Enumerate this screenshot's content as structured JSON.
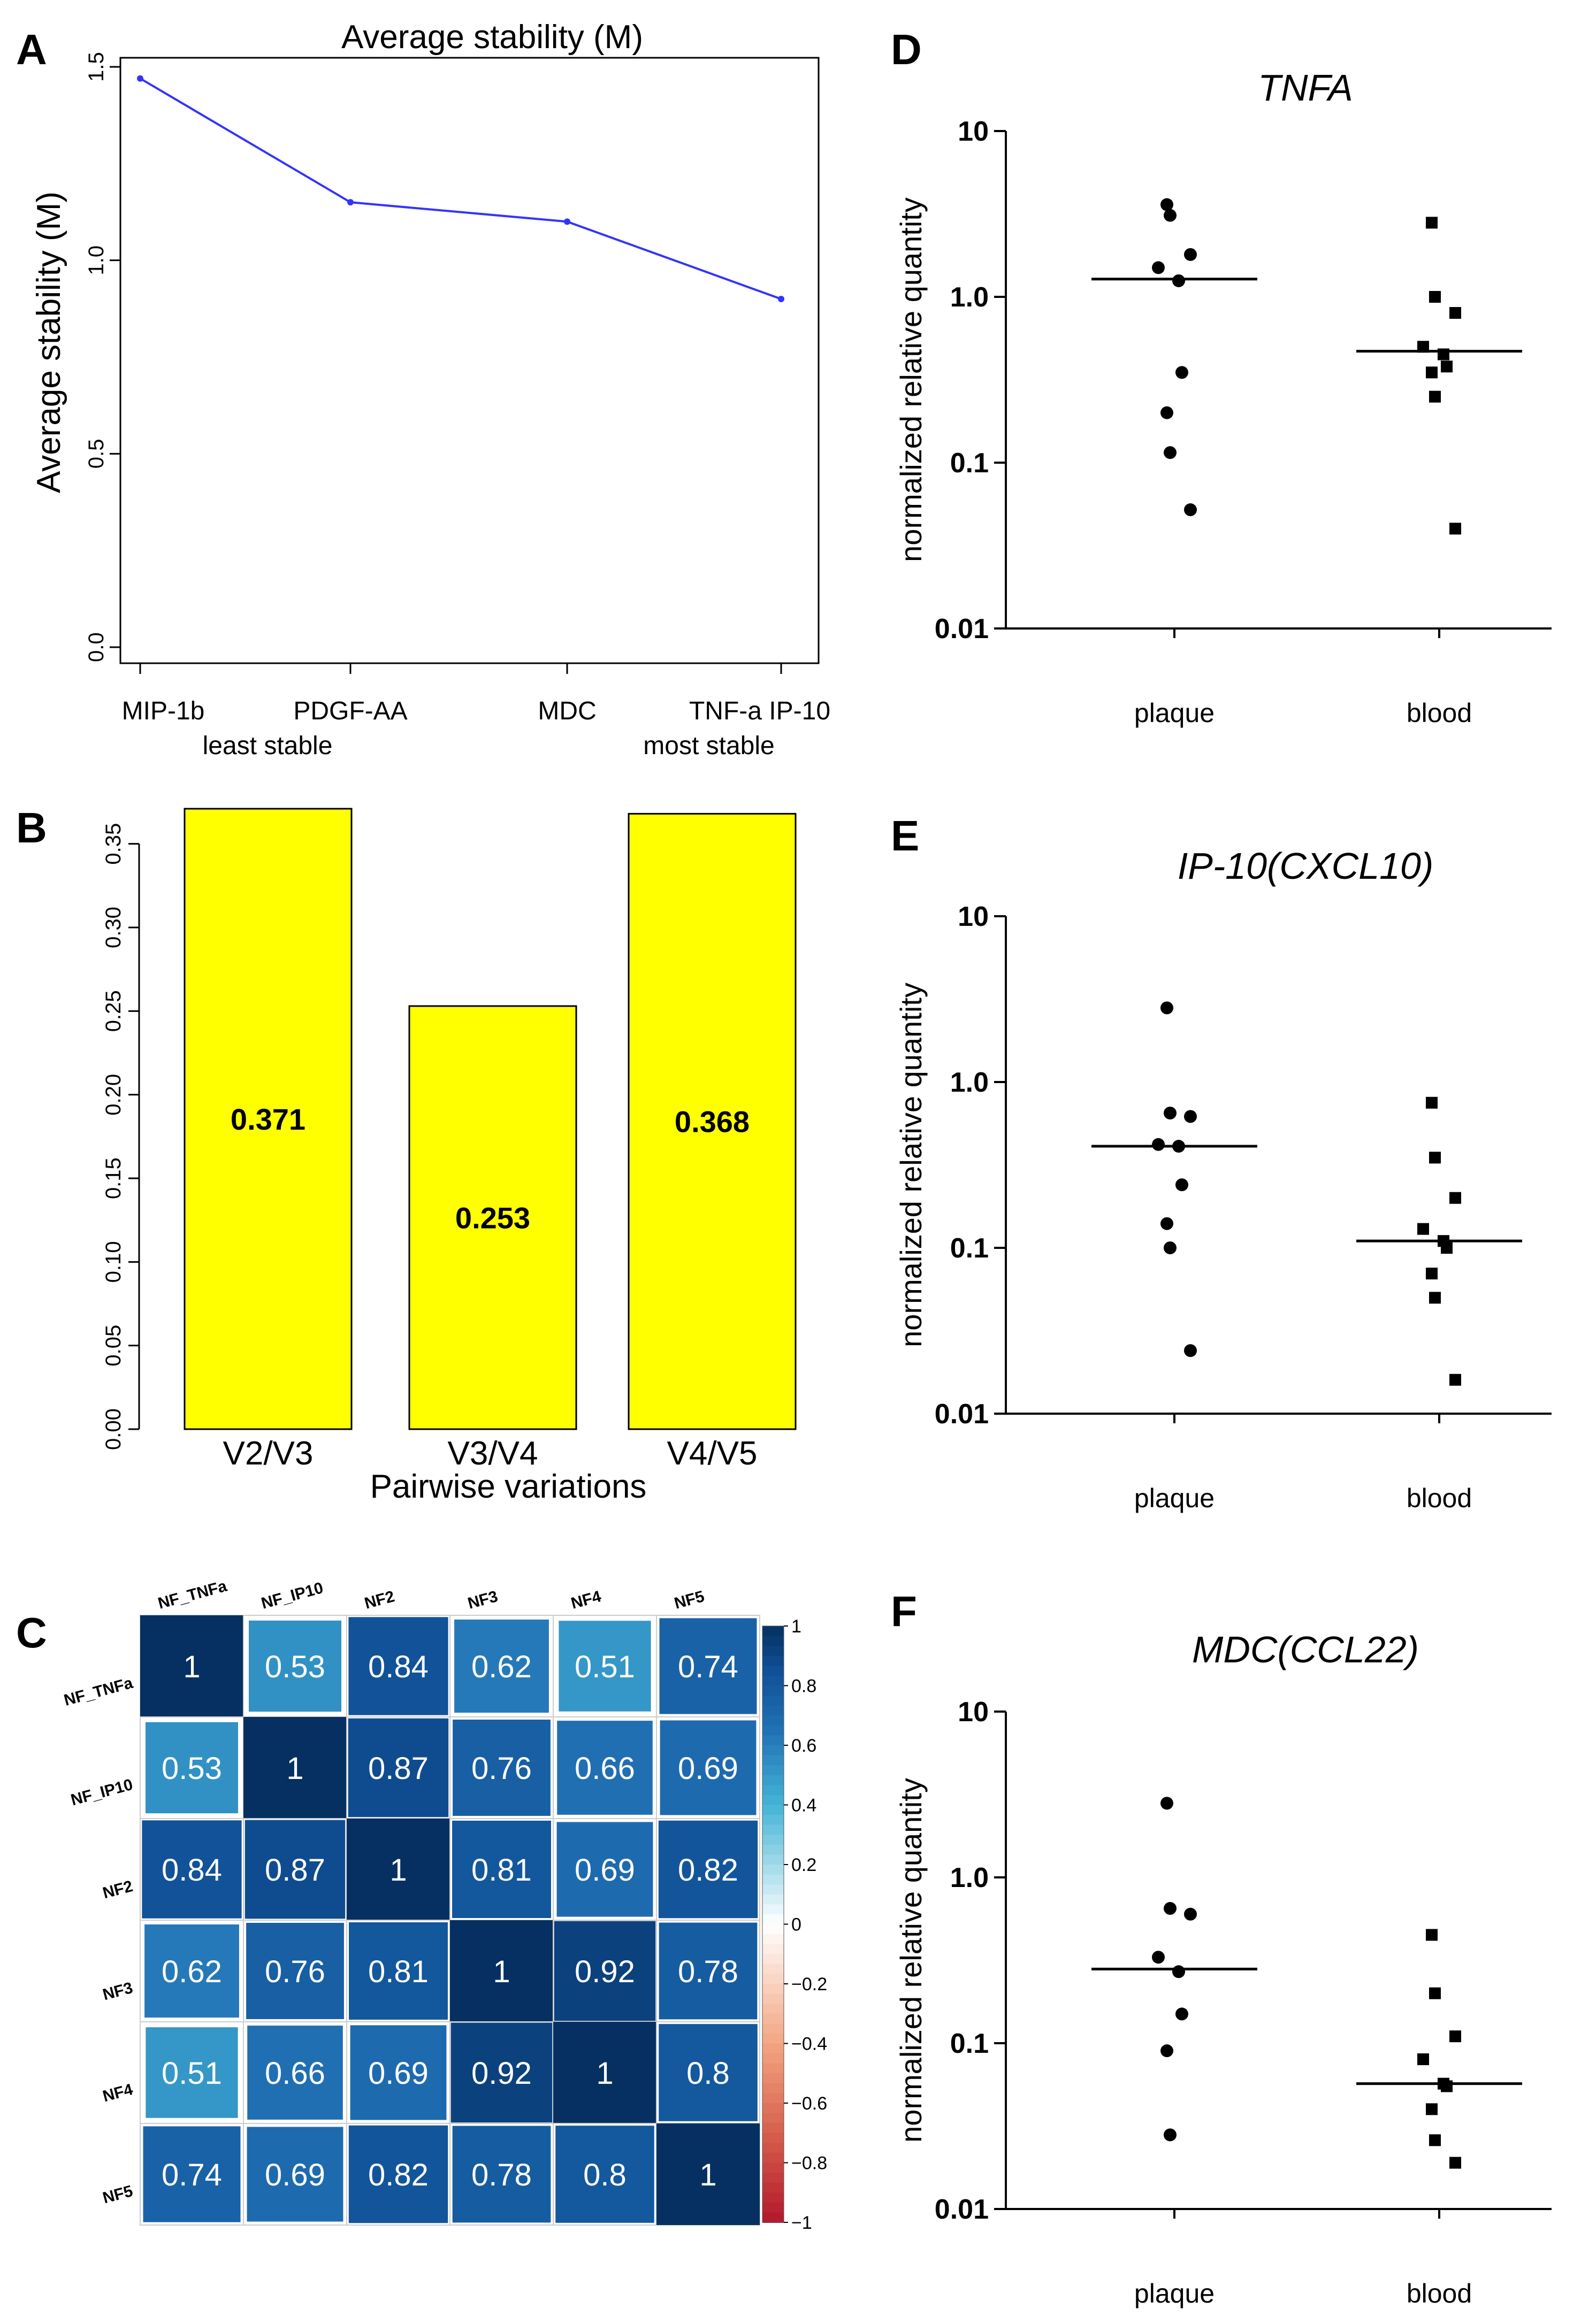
{
  "panels": {
    "A": "A",
    "B": "B",
    "C": "C",
    "D": "D",
    "E": "E",
    "F": "F"
  },
  "chart_data": [
    {
      "id": "A",
      "type": "line",
      "title": "Average stability (M)",
      "xlabel": "",
      "ylabel": "Average stability (M)",
      "categories": [
        "MIP-1b",
        "PDGF-AA",
        "MDC",
        "TNF-a IP-10"
      ],
      "values": [
        1.47,
        1.15,
        1.1,
        0.9
      ],
      "sub_labels": [
        "least stable",
        "most stable"
      ],
      "ylim": [
        0,
        1.5
      ],
      "yticks": [
        "0.0",
        "0.5",
        "1.0",
        "1.5"
      ],
      "color": "#3333ff"
    },
    {
      "id": "B",
      "type": "bar",
      "title": "",
      "xlabel": "Pairwise variations",
      "ylabel": "",
      "categories": [
        "V2/V3",
        "V3/V4",
        "V4/V5"
      ],
      "values": [
        0.371,
        0.253,
        0.368
      ],
      "value_labels": [
        "0.371",
        "0.253",
        "0.368"
      ],
      "ylim": [
        0,
        0.371
      ],
      "yticks": [
        "0.00",
        "0.05",
        "0.10",
        "0.15",
        "0.20",
        "0.25",
        "0.30",
        "0.35"
      ],
      "color": "#ffff00"
    },
    {
      "id": "C",
      "type": "heatmap",
      "labels": [
        "NF_TNFa",
        "NF_IP10",
        "NF2",
        "NF3",
        "NF4",
        "NF5"
      ],
      "matrix": [
        [
          1,
          0.53,
          0.84,
          0.62,
          0.51,
          0.74
        ],
        [
          0.53,
          1,
          0.87,
          0.76,
          0.66,
          0.69
        ],
        [
          0.84,
          0.87,
          1,
          0.81,
          0.69,
          0.82
        ],
        [
          0.62,
          0.76,
          0.81,
          1,
          0.92,
          0.78
        ],
        [
          0.51,
          0.66,
          0.69,
          0.92,
          1,
          0.8
        ],
        [
          0.74,
          0.69,
          0.82,
          0.78,
          0.8,
          1
        ]
      ],
      "cell_labels": [
        [
          "1",
          "0.53",
          "0.84",
          "0.62",
          "0.51",
          "0.74"
        ],
        [
          "0.53",
          "1",
          "0.87",
          "0.76",
          "0.66",
          "0.69"
        ],
        [
          "0.84",
          "0.87",
          "1",
          "0.81",
          "0.69",
          "0.82"
        ],
        [
          "0.62",
          "0.76",
          "0.81",
          "1",
          "0.92",
          "0.78"
        ],
        [
          "0.51",
          "0.66",
          "0.69",
          "0.92",
          "1",
          "0.8"
        ],
        [
          "0.74",
          "0.69",
          "0.82",
          "0.78",
          "0.8",
          "1"
        ]
      ],
      "colorbar_ticks": [
        "1",
        "0.8",
        "0.6",
        "0.4",
        "0.2",
        "0",
        "−0.2",
        "−0.4",
        "−0.6",
        "−0.8",
        "−1"
      ],
      "colors": {
        "positive": "#053061",
        "neutral": "#ffffff",
        "negative": "#b2182b"
      }
    },
    {
      "id": "D",
      "type": "scatter",
      "title": "TNFA",
      "ylabel": "normalized relative quantity",
      "categories": [
        "plaque",
        "blood"
      ],
      "yscale": "log",
      "ylim": [
        0.01,
        10
      ],
      "yticks": [
        "10",
        "1.0",
        "0.1",
        "0.01"
      ],
      "series": [
        {
          "name": "plaque",
          "marker": "circle",
          "values": [
            3.6,
            3.1,
            1.8,
            1.5,
            1.25,
            0.35,
            0.2,
            0.115,
            0.052
          ],
          "median": 1.28
        },
        {
          "name": "blood",
          "marker": "square",
          "values": [
            2.8,
            1.0,
            0.8,
            0.5,
            0.45,
            0.38,
            0.35,
            0.25,
            0.04
          ],
          "median": 0.47
        }
      ]
    },
    {
      "id": "E",
      "type": "scatter",
      "title": "IP-10(CXCL10)",
      "ylabel": "normalized relative quantity",
      "categories": [
        "plaque",
        "blood"
      ],
      "yscale": "log",
      "ylim": [
        0.01,
        10
      ],
      "yticks": [
        "10",
        "1.0",
        "0.1",
        "0.01"
      ],
      "series": [
        {
          "name": "plaque",
          "marker": "circle",
          "values": [
            2.8,
            0.65,
            0.62,
            0.42,
            0.41,
            0.24,
            0.14,
            0.1,
            0.024
          ],
          "median": 0.41
        },
        {
          "name": "blood",
          "marker": "square",
          "values": [
            0.75,
            0.35,
            0.2,
            0.13,
            0.11,
            0.1,
            0.07,
            0.05,
            0.016
          ],
          "median": 0.11
        }
      ]
    },
    {
      "id": "F",
      "type": "scatter",
      "title": "MDC(CCL22)",
      "ylabel": "normalized relative quantity",
      "categories": [
        "plaque",
        "blood"
      ],
      "yscale": "log",
      "ylim": [
        0.01,
        10
      ],
      "yticks": [
        "10",
        "1.0",
        "0.1",
        "0.01"
      ],
      "series": [
        {
          "name": "plaque",
          "marker": "circle",
          "values": [
            2.8,
            0.65,
            0.6,
            0.33,
            0.27,
            0.15,
            0.09,
            0.028
          ],
          "median": 0.28
        },
        {
          "name": "blood",
          "marker": "square",
          "values": [
            0.45,
            0.2,
            0.11,
            0.08,
            0.057,
            0.055,
            0.04,
            0.026,
            0.019
          ],
          "median": 0.057
        }
      ]
    }
  ]
}
